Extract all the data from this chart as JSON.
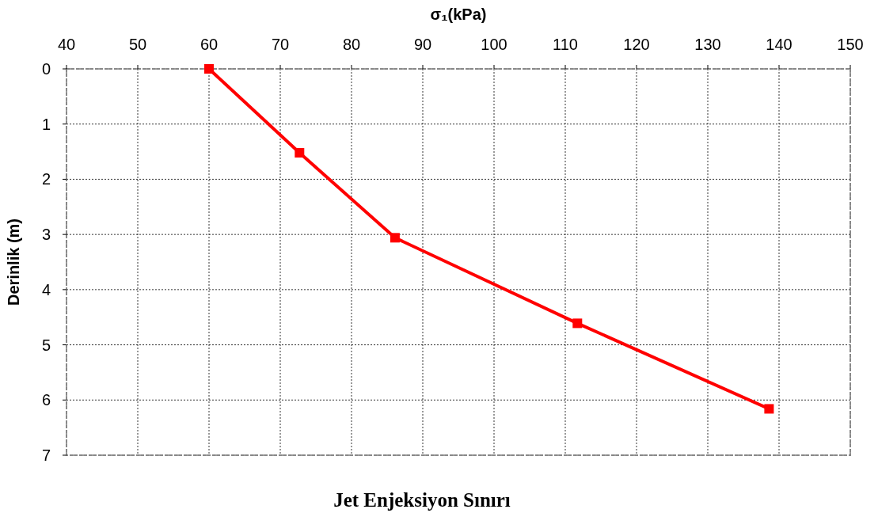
{
  "chart_data": {
    "type": "line",
    "title": "Jet Enjeksiyon Sınırı",
    "xlabel": "σ₁(kPa)",
    "ylabel": "Derinlik (m)",
    "x": [
      60,
      72.7,
      86.1,
      111.7,
      138.6
    ],
    "series": [
      {
        "color": "#ff0000",
        "values": [
          0,
          1.52,
          3.06,
          4.61,
          6.16
        ]
      }
    ],
    "xlim": [
      40,
      150
    ],
    "xticks": [
      40,
      50,
      60,
      70,
      80,
      90,
      100,
      110,
      120,
      130,
      140,
      150
    ],
    "ylim": [
      7,
      0
    ],
    "yticks": [
      0,
      1,
      2,
      3,
      4,
      5,
      6,
      7
    ],
    "grid": true,
    "marker": "square",
    "line_style": "solid"
  }
}
